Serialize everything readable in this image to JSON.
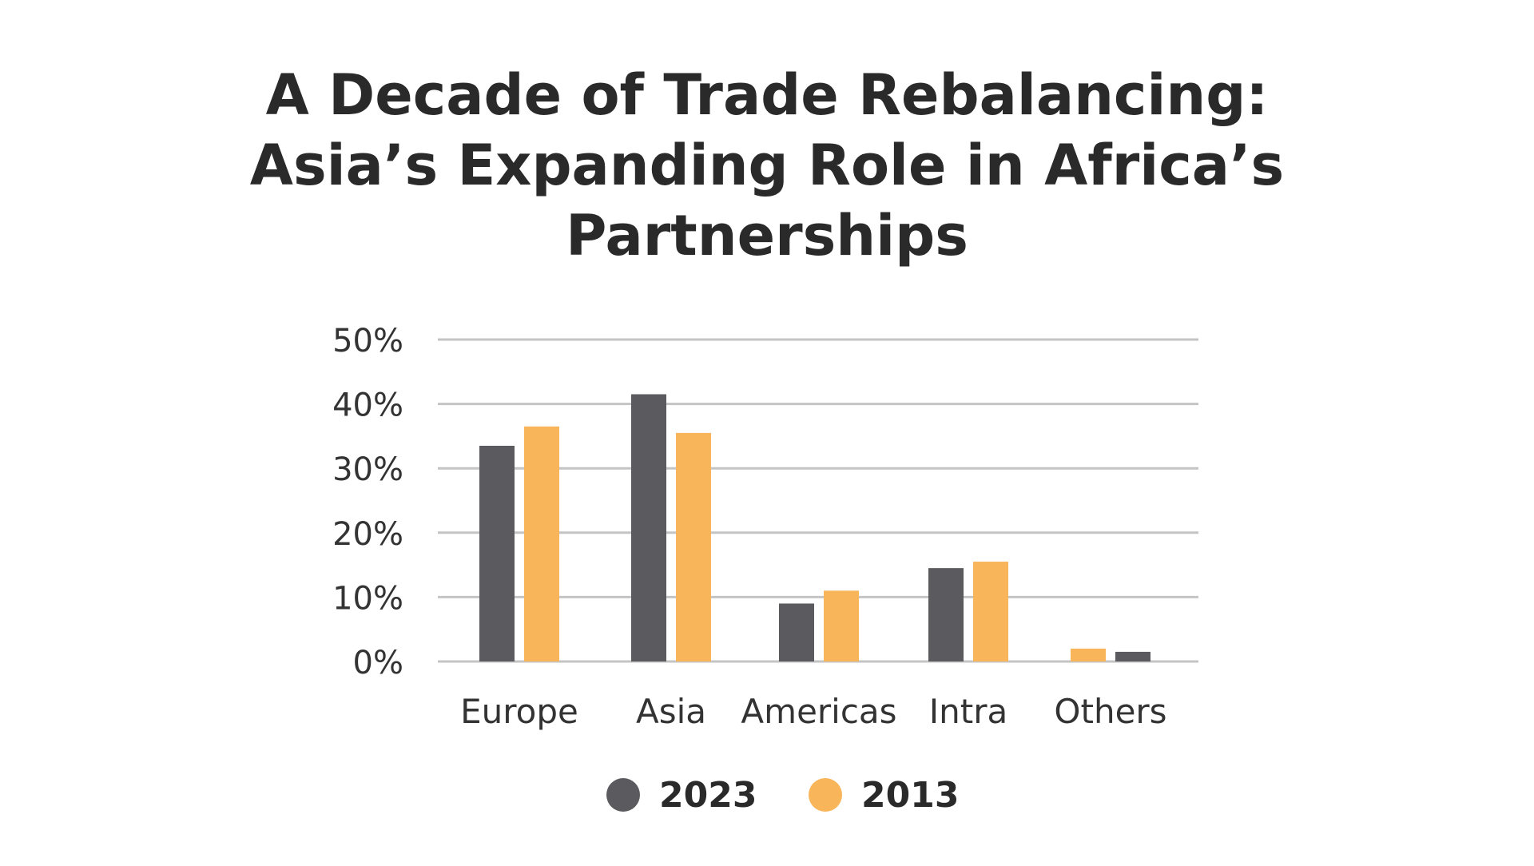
{
  "chart_data": {
    "type": "bar",
    "title": "A Decade of Trade Rebalancing: Asia’s Expanding Role in Africa’s Partnerships",
    "title_lines": [
      "A Decade of Trade Rebalancing:",
      "Asia’s Expanding Role in Africa’s",
      "Partnerships"
    ],
    "xlabel": "",
    "ylabel": "",
    "categories": [
      "Europe",
      "Asia",
      "Americas",
      "Intra",
      "Others"
    ],
    "series": [
      {
        "name": "2023",
        "color": "#5b5b5f",
        "values": [
          33.5,
          41.5,
          9,
          14.5,
          1.5
        ]
      },
      {
        "name": "2013",
        "color": "#f8b55a",
        "values": [
          36.5,
          35.5,
          11,
          15.5,
          2
        ]
      }
    ],
    "series_order_per_category": [
      [
        "2023",
        "2013"
      ],
      [
        "2023",
        "2013"
      ],
      [
        "2023",
        "2013"
      ],
      [
        "2023",
        "2013"
      ],
      [
        "2013",
        "2023"
      ]
    ],
    "ylim": [
      0,
      50
    ],
    "yticks": [
      0,
      10,
      20,
      30,
      40,
      50
    ],
    "ytick_labels": [
      "0%",
      "10%",
      "20%",
      "30%",
      "40%",
      "50%"
    ],
    "grid": true,
    "grid_color": "#c4c4c4",
    "legend": {
      "placement": "bottom-center",
      "entries": [
        {
          "label": "2023",
          "color": "#5b5b5f"
        },
        {
          "label": "2013",
          "color": "#f8b55a"
        }
      ]
    }
  }
}
